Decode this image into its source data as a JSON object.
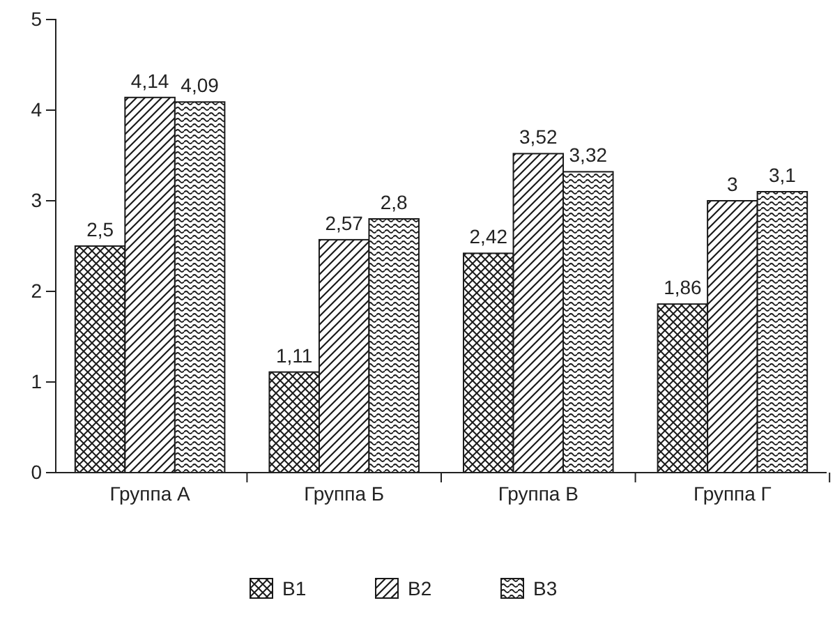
{
  "chart_data": {
    "type": "bar",
    "categories": [
      "Группа А",
      "Группа Б",
      "Группа В",
      "Группа Г"
    ],
    "series": [
      {
        "name": "В1",
        "color": "#1a1a1a",
        "values": [
          2.5,
          1.11,
          2.42,
          1.86
        ],
        "value_labels": [
          "2,5",
          "1,11",
          "2,42",
          "1,86"
        ]
      },
      {
        "name": "В2",
        "color": "#1a1a1a",
        "values": [
          4.14,
          2.57,
          3.52,
          3
        ],
        "value_labels": [
          "4,14",
          "2,57",
          "3,52",
          "3"
        ]
      },
      {
        "name": "В3",
        "color": "#1a1a1a",
        "values": [
          4.09,
          2.8,
          3.32,
          3.1
        ],
        "value_labels": [
          "4,09",
          "2,8",
          "3,32",
          "3,1"
        ]
      }
    ],
    "ylim": [
      0,
      5
    ],
    "yticks": [
      0,
      1,
      2,
      3,
      4,
      5
    ],
    "grid": false,
    "legend": "bottom"
  }
}
